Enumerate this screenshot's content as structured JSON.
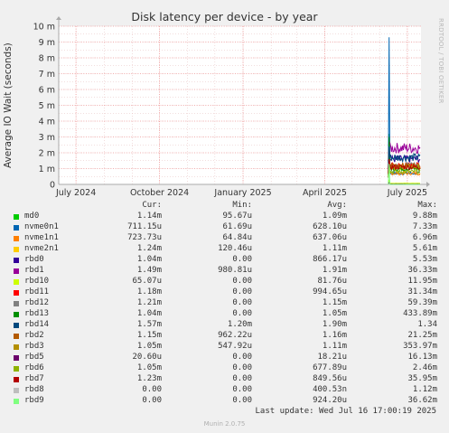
{
  "chart_data": {
    "type": "line",
    "title": "Disk latency per device - by year",
    "ylabel": "Average IO Wait (seconds)",
    "side_label": "RRDTOOL / TOBI OETIKER",
    "y_ticks": [
      {
        "value": 0,
        "label": "0"
      },
      {
        "value": 0.001,
        "label": "1 m"
      },
      {
        "value": 0.002,
        "label": "2 m"
      },
      {
        "value": 0.003,
        "label": "3 m"
      },
      {
        "value": 0.004,
        "label": "4 m"
      },
      {
        "value": 0.005,
        "label": "5 m"
      },
      {
        "value": 0.006,
        "label": "6 m"
      },
      {
        "value": 0.007,
        "label": "7 m"
      },
      {
        "value": 0.008,
        "label": "8 m"
      },
      {
        "value": 0.009,
        "label": "9 m"
      },
      {
        "value": 0.01,
        "label": "10 m"
      }
    ],
    "ylim": [
      0,
      0.01
    ],
    "x_ticks": [
      {
        "value": "2024-07-01",
        "label": "July 2024"
      },
      {
        "value": "2024-10-01",
        "label": "October 2024"
      },
      {
        "value": "2025-01-01",
        "label": "January 2025"
      },
      {
        "value": "2025-04-01",
        "label": "April 2025"
      },
      {
        "value": "2025-07-01",
        "label": "July 2025"
      }
    ],
    "xlim": [
      "2024-06-12",
      "2025-07-16"
    ],
    "data_start": "2025-06-10",
    "grid": true,
    "series": [
      {
        "name": "md0",
        "color": "#00cc00",
        "cur": "1.14m",
        "min": "95.67u",
        "avg": "1.09m",
        "max": "9.88m",
        "spike": 0.0032,
        "level": 0.0011
      },
      {
        "name": "nvme0n1",
        "color": "#0066b3",
        "cur": "711.15u",
        "min": "61.69u",
        "avg": "628.10u",
        "max": "7.33m",
        "spike": 0.0093,
        "level": 0.0007
      },
      {
        "name": "nvme1n1",
        "color": "#ff8000",
        "cur": "723.73u",
        "min": "64.84u",
        "avg": "637.06u",
        "max": "6.96m",
        "spike": 0.0021,
        "level": 0.0007
      },
      {
        "name": "nvme2n1",
        "color": "#ffcc00",
        "cur": "1.24m",
        "min": "120.46u",
        "avg": "1.11m",
        "max": "5.61m",
        "spike": 0.0019,
        "level": 0.0011
      },
      {
        "name": "rbd0",
        "color": "#330099",
        "cur": "1.04m",
        "min": "0.00",
        "avg": "866.17u",
        "max": "5.53m",
        "spike": 0.0025,
        "level": 0.0016
      },
      {
        "name": "rbd1",
        "color": "#990099",
        "cur": "1.49m",
        "min": "980.81u",
        "avg": "1.91m",
        "max": "36.33m",
        "spike": 0.0027,
        "level": 0.0023
      },
      {
        "name": "rbd10",
        "color": "#ccff00",
        "cur": "65.07u",
        "min": "0.00",
        "avg": "81.76u",
        "max": "11.95m",
        "spike": 0.0003,
        "level": 7e-05
      },
      {
        "name": "rbd11",
        "color": "#ff0000",
        "cur": "1.18m",
        "min": "0.00",
        "avg": "994.65u",
        "max": "31.34m",
        "spike": 0.0018,
        "level": 0.0012
      },
      {
        "name": "rbd12",
        "color": "#808080",
        "cur": "1.21m",
        "min": "0.00",
        "avg": "1.15m",
        "max": "59.39m",
        "spike": 0.0017,
        "level": 0.0012
      },
      {
        "name": "rbd13",
        "color": "#008f00",
        "cur": "1.04m",
        "min": "0.00",
        "avg": "1.05m",
        "max": "433.89m",
        "spike": 0.003,
        "level": 0.001
      },
      {
        "name": "rbd14",
        "color": "#00487d",
        "cur": "1.57m",
        "min": "1.20m",
        "avg": "1.90m",
        "max": "1.34",
        "spike": 0.0024,
        "level": 0.0017
      },
      {
        "name": "rbd2",
        "color": "#b35a00",
        "cur": "1.15m",
        "min": "962.22u",
        "avg": "1.16m",
        "max": "21.25m",
        "spike": 0.0016,
        "level": 0.0012
      },
      {
        "name": "rbd3",
        "color": "#b38f00",
        "cur": "1.05m",
        "min": "547.92u",
        "avg": "1.11m",
        "max": "353.97m",
        "spike": 0.0015,
        "level": 0.0011
      },
      {
        "name": "rbd5",
        "color": "#6b006b",
        "cur": "20.60u",
        "min": "0.00",
        "avg": "18.21u",
        "max": "16.13m",
        "spike": 0.0001,
        "level": 2e-05
      },
      {
        "name": "rbd6",
        "color": "#8fb300",
        "cur": "1.05m",
        "min": "0.00",
        "avg": "677.89u",
        "max": "2.46m",
        "spike": 0.0014,
        "level": 0.0008
      },
      {
        "name": "rbd7",
        "color": "#b30000",
        "cur": "1.23m",
        "min": "0.00",
        "avg": "849.56u",
        "max": "35.95m",
        "spike": 0.0016,
        "level": 0.0011
      },
      {
        "name": "rbd8",
        "color": "#bebebe",
        "cur": "0.00",
        "min": "0.00",
        "avg": "400.53n",
        "max": "1.12m",
        "spike": 2e-05,
        "level": 0
      },
      {
        "name": "rbd9",
        "color": "#80ff80",
        "cur": "0.00",
        "min": "0.00",
        "avg": "924.20u",
        "max": "36.62m",
        "spike": 0.0013,
        "level": 0
      }
    ]
  },
  "legend_headers": {
    "cur": "Cur:",
    "min": "Min:",
    "avg": "Avg:",
    "max": "Max:"
  },
  "last_update": "Last update: Wed Jul 16 17:00:19 2025",
  "footer": "Munin 2.0.75"
}
